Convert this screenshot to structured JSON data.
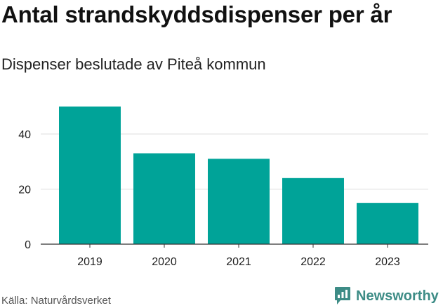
{
  "header": {
    "title": "Antal strandskyddsdispenser per år",
    "subtitle": "Dispenser beslutade av Piteå kommun"
  },
  "footer": {
    "source": "Källa: Naturvårdsverket",
    "brand": "Newsworthy",
    "brand_icon": "newsworthy-logo-icon"
  },
  "colors": {
    "bar": "#00a398",
    "grid": "#dddddd",
    "axis": "#333333",
    "brand": "#3d8c86"
  },
  "chart_data": {
    "type": "bar",
    "title": "Antal strandskyddsdispenser per år",
    "subtitle": "Dispenser beslutade av Piteå kommun",
    "xlabel": "",
    "ylabel": "",
    "categories": [
      "2019",
      "2020",
      "2021",
      "2022",
      "2023"
    ],
    "values": [
      50,
      33,
      31,
      24,
      15
    ],
    "ylim": [
      0,
      53
    ],
    "yticks": [
      0,
      20,
      40
    ],
    "ytick_labels": [
      "0",
      "20",
      "40"
    ],
    "grid": true,
    "legend": "none"
  }
}
